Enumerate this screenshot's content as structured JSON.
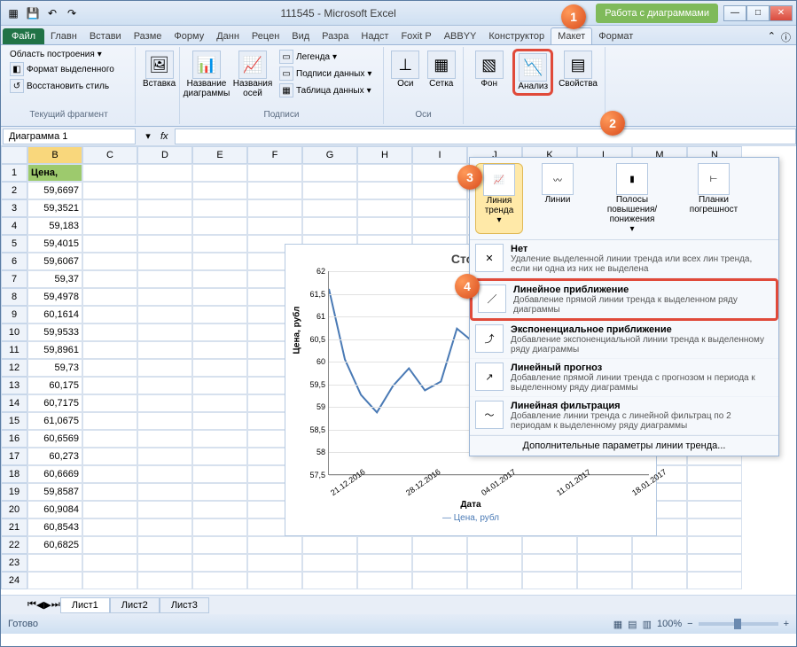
{
  "title": "111545 - Microsoft Excel",
  "chart_tools_label": "Работа с диаграммами",
  "tabs": {
    "file": "Файл",
    "list": [
      "Главн",
      "Встави",
      "Разме",
      "Форму",
      "Данн",
      "Рецен",
      "Вид",
      "Разра",
      "Надст",
      "Foxit P",
      "ABBYY",
      "Конструктор",
      "Макет",
      "Формат"
    ]
  },
  "ribbon": {
    "group1": {
      "label": "Текущий фрагмент",
      "area": "Область построения",
      "format_sel": "Формат выделенного",
      "reset": "Восстановить стиль"
    },
    "group2": {
      "label": "",
      "insert": "Вставка"
    },
    "group3": {
      "label": "Подписи",
      "chart_title": "Название диаграммы",
      "axis_title": "Названия осей",
      "legend": "Легенда",
      "data_labels": "Подписи данных",
      "data_table": "Таблица данных"
    },
    "group4": {
      "label": "Оси",
      "axes": "Оси",
      "grid": "Сетка"
    },
    "group5": {
      "label": "",
      "bg": "Фон",
      "analysis": "Анализ",
      "props": "Свойства"
    }
  },
  "analysis_panel": {
    "trend": "Линия тренда",
    "lines": "Линии",
    "updown": "Полосы повышения/понижения",
    "error": "Планки погрешност"
  },
  "namebox": "Диаграмма 1",
  "columns": [
    "B",
    "C",
    "D",
    "E",
    "F",
    "G",
    "H",
    "I",
    "J",
    "K",
    "L",
    "M",
    "N"
  ],
  "header_cell": "Цена, рубл",
  "prices": [
    "59,6697",
    "59,3521",
    "59,183",
    "59,4015",
    "59,6067",
    "59,37",
    "59,4978",
    "60,1614",
    "59,9533",
    "59,8961",
    "59,73",
    "60,175",
    "60,7175",
    "61,0675",
    "60,6569",
    "60,273",
    "60,6669",
    "59,8587",
    "60,9084",
    "60,8543",
    "60,6825"
  ],
  "chart": {
    "title": "Стоим",
    "ylabel": "Цена, рубл",
    "xlabel": "Дата",
    "legend": "— Цена, рубл",
    "yticks": [
      "62",
      "61,5",
      "61",
      "60,5",
      "60",
      "59,5",
      "59",
      "58,5",
      "58",
      "57,5"
    ],
    "xticks": [
      "21.12.2016",
      "28.12.2016",
      "04.01.2017",
      "11.01.2017",
      "18.01.2017"
    ],
    "line_color": "#4a7ab5"
  },
  "dropdown": {
    "header": {
      "trend": "Линия тренда",
      "lines": "Линии",
      "updown": "Полосы повышения/понижения",
      "error": "Планки погрешност"
    },
    "items": [
      {
        "title": "Нет",
        "desc": "Удаление выделенной линии тренда или всех лин тренда, если ни одна из них не выделена"
      },
      {
        "title": "Линейное приближение",
        "desc": "Добавление прямой линии тренда к выделенном ряду диаграммы"
      },
      {
        "title": "Экспоненциальное приближение",
        "desc": "Добавление экспоненциальной линии тренда к выделенному ряду диаграммы"
      },
      {
        "title": "Линейный прогноз",
        "desc": "Добавление прямой линии тренда с прогнозом н периода к выделенному ряду диаграммы"
      },
      {
        "title": "Линейная фильтрация",
        "desc": "Добавление линии тренда с линейной фильтрац по 2 периодам к выделенному ряду диаграммы"
      }
    ],
    "footer": "Дополнительные параметры линии тренда..."
  },
  "sheets": [
    "Лист1",
    "Лист2",
    "Лист3"
  ],
  "status": "Готово",
  "zoom": "100%",
  "markers": [
    "1",
    "2",
    "3",
    "4"
  ]
}
